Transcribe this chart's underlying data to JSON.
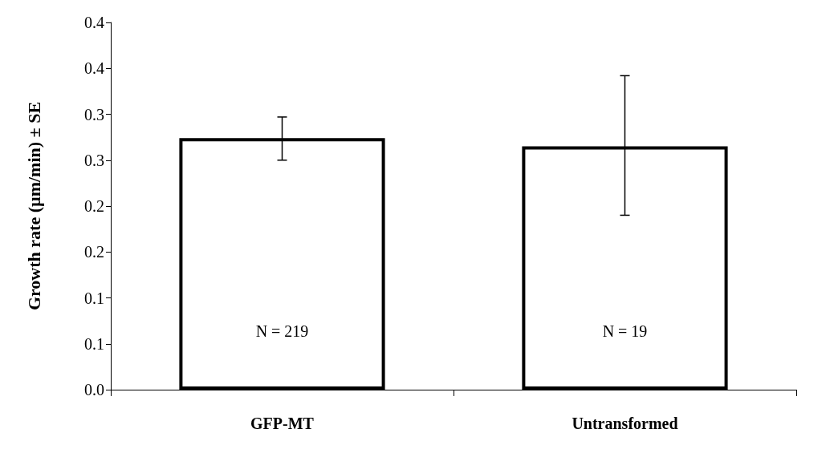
{
  "chart_data": {
    "type": "bar",
    "ylabel": "Growth rate (µm/min) ± SE",
    "categories": [
      "GFP-MT",
      "Untransformed"
    ],
    "values": [
      0.274,
      0.265
    ],
    "errors": [
      [
        0.25,
        0.297
      ],
      [
        0.19,
        0.342
      ]
    ],
    "color": "#ffffff",
    "ylim": [
      0,
      0.4
    ],
    "yticks": [
      {
        "value": 0,
        "label": "0.0"
      },
      {
        "value": 0.05,
        "label": "0.1"
      },
      {
        "value": 0.1,
        "label": "0.1"
      },
      {
        "value": 0.15,
        "label": "0.2"
      },
      {
        "value": 0.2,
        "label": "0.2"
      },
      {
        "value": 0.25,
        "label": "0.3"
      },
      {
        "value": 0.3,
        "label": "0.3"
      },
      {
        "value": 0.35,
        "label": "0.4"
      },
      {
        "value": 0.4,
        "label": "0.4"
      }
    ],
    "annotations": [
      "N = 219",
      "N = 19"
    ],
    "grid": false
  }
}
